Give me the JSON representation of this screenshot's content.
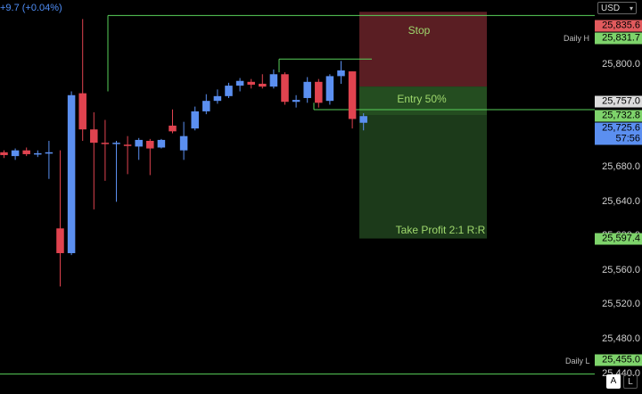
{
  "header": {
    "change": "+9.7 (+0.04%)"
  },
  "axis": {
    "currency": "USD",
    "ticks": [
      "25,800.0",
      "25,680.0",
      "25,640.0",
      "25,600.0",
      "25,560.0",
      "25,520.0",
      "25,480.0"
    ],
    "tick_values": [
      25800,
      25680,
      25640,
      25600,
      25560,
      25520,
      25480
    ],
    "partial_tick": "25,440.0",
    "price_tags": {
      "stop": "25,835.6",
      "daily_high": "25,831.7",
      "entry": "25,757.0",
      "midline": "25,732.8",
      "last_price": "25,725.6",
      "countdown": "57:56",
      "take_profit": "25,597.4",
      "daily_low": "25,455.0"
    },
    "buttons": {
      "auto": "A",
      "log": "L"
    }
  },
  "levels": {
    "daily_high": {
      "label": "Daily H",
      "price": 25831.7
    },
    "daily_low": {
      "label": "Daily L",
      "price": 25455.0
    },
    "midline": {
      "price": 25732.8
    }
  },
  "position": {
    "stop_label": "Stop",
    "entry_label": "Entry 50%",
    "take_profit_label": "Take Profit 2:1 R:R",
    "stop_price": 25835.6,
    "entry_price": 25757.0,
    "take_profit_price": 25597.4
  },
  "colors": {
    "bull": "#5b8ff0",
    "bear": "#e0434f",
    "level_line": "#58d05a",
    "stop_zone": "#5a1e23",
    "target_zone": "#1c3a1a",
    "tag_green": "#7ed36b",
    "tag_red": "#e15a5d",
    "tag_white": "#dcdcdc",
    "tag_blue": "#5b8ff0"
  },
  "chart_data": {
    "type": "candlestick",
    "candles": [
      {
        "o": 25688,
        "h": 25690,
        "l": 25682,
        "c": 25685
      },
      {
        "o": 25684,
        "h": 25692,
        "l": 25680,
        "c": 25690
      },
      {
        "o": 25690,
        "h": 25693,
        "l": 25684,
        "c": 25686
      },
      {
        "o": 25686,
        "h": 25690,
        "l": 25683,
        "c": 25687
      },
      {
        "o": 25687,
        "h": 25700,
        "l": 25660,
        "c": 25688
      },
      {
        "o": 25608,
        "h": 25690,
        "l": 25547,
        "c": 25582
      },
      {
        "o": 25582,
        "h": 25752,
        "l": 25580,
        "c": 25748
      },
      {
        "o": 25750,
        "h": 25828,
        "l": 25700,
        "c": 25712
      },
      {
        "o": 25712,
        "h": 25730,
        "l": 25628,
        "c": 25698
      },
      {
        "o": 25698,
        "h": 25722,
        "l": 25658,
        "c": 25697
      },
      {
        "o": 25697,
        "h": 25700,
        "l": 25636,
        "c": 25698
      },
      {
        "o": 25696,
        "h": 25705,
        "l": 25665,
        "c": 25695
      },
      {
        "o": 25694,
        "h": 25703,
        "l": 25680,
        "c": 25701
      },
      {
        "o": 25700,
        "h": 25702,
        "l": 25664,
        "c": 25692
      },
      {
        "o": 25693,
        "h": 25702,
        "l": 25692,
        "c": 25701
      },
      {
        "o": 25716,
        "h": 25733,
        "l": 25708,
        "c": 25710
      },
      {
        "o": 25690,
        "h": 25720,
        "l": 25680,
        "c": 25705
      },
      {
        "o": 25713,
        "h": 25736,
        "l": 25711,
        "c": 25731
      },
      {
        "o": 25731,
        "h": 25749,
        "l": 25728,
        "c": 25742
      },
      {
        "o": 25742,
        "h": 25754,
        "l": 25739,
        "c": 25747
      },
      {
        "o": 25747,
        "h": 25761,
        "l": 25745,
        "c": 25758
      },
      {
        "o": 25758,
        "h": 25766,
        "l": 25752,
        "c": 25763
      },
      {
        "o": 25762,
        "h": 25765,
        "l": 25755,
        "c": 25759
      },
      {
        "o": 25760,
        "h": 25770,
        "l": 25755,
        "c": 25757
      },
      {
        "o": 25757,
        "h": 25775,
        "l": 25755,
        "c": 25770
      },
      {
        "o": 25770,
        "h": 25772,
        "l": 25738,
        "c": 25741
      },
      {
        "o": 25741,
        "h": 25748,
        "l": 25735,
        "c": 25743
      },
      {
        "o": 25745,
        "h": 25767,
        "l": 25740,
        "c": 25762
      },
      {
        "o": 25762,
        "h": 25765,
        "l": 25735,
        "c": 25740
      },
      {
        "o": 25742,
        "h": 25770,
        "l": 25738,
        "c": 25768
      },
      {
        "o": 25768,
        "h": 25784,
        "l": 25760,
        "c": 25774
      },
      {
        "o": 25773,
        "h": 25773,
        "l": 25713,
        "c": 25723
      },
      {
        "o": 25719,
        "h": 25729,
        "l": 25711,
        "c": 25726
      }
    ],
    "ylim": [
      25434,
      25848
    ]
  }
}
